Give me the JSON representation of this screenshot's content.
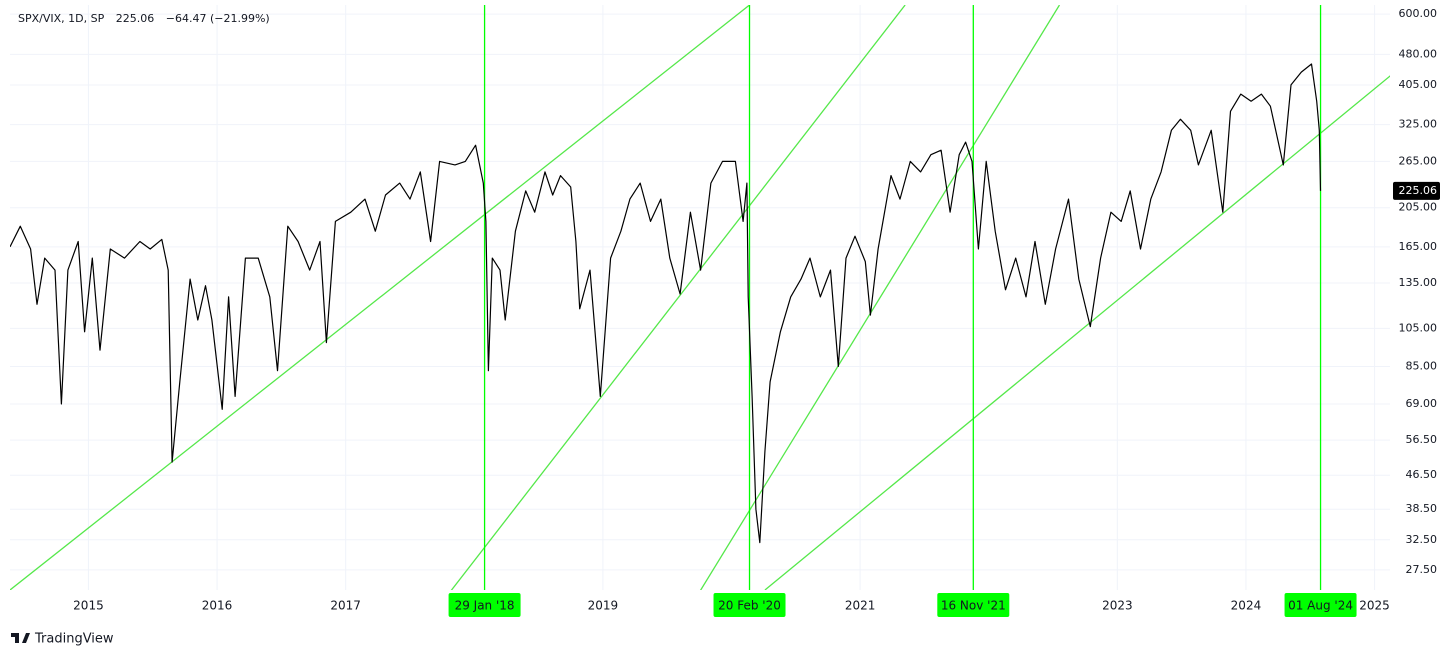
{
  "chart_data": {
    "type": "line",
    "title": "SPX/VIX, 1D, SP",
    "change": "−64.47 (−21.99%)",
    "brand": "TradingView",
    "scale": "log",
    "grid": true,
    "xlim": [
      2014.39,
      2025.12
    ],
    "xticks": [
      2015,
      2016,
      2017,
      2019,
      2021,
      2023,
      2024,
      2025
    ],
    "ylim": [
      24.6,
      631
    ],
    "yticks": [
      {
        "value": 27.5,
        "label": "27.50"
      },
      {
        "value": 32.5,
        "label": "32.50"
      },
      {
        "value": 38.5,
        "label": "38.50"
      },
      {
        "value": 46.5,
        "label": "46.50"
      },
      {
        "value": 56.5,
        "label": "56.50"
      },
      {
        "value": 69,
        "label": "69.00"
      },
      {
        "value": 85,
        "label": "85.00"
      },
      {
        "value": 105,
        "label": "105.00"
      },
      {
        "value": 135,
        "label": "135.00"
      },
      {
        "value": 165,
        "label": "165.00"
      },
      {
        "value": 205,
        "label": "205.00"
      },
      {
        "value": 265,
        "label": "265.00"
      },
      {
        "value": 325,
        "label": "325.00"
      },
      {
        "value": 405,
        "label": "405.00"
      },
      {
        "value": 480,
        "label": "480.00"
      },
      {
        "value": 600,
        "label": "600.00"
      }
    ],
    "series": [
      {
        "color": "#000000",
        "x": [
          2014.39,
          2014.47,
          2014.55,
          2014.6,
          2014.66,
          2014.74,
          2014.79,
          2014.84,
          2014.92,
          2014.97,
          2015.03,
          2015.09,
          2015.17,
          2015.28,
          2015.4,
          2015.48,
          2015.57,
          2015.62,
          2015.65,
          2015.71,
          2015.79,
          2015.85,
          2015.91,
          2015.96,
          2016.04,
          2016.09,
          2016.14,
          2016.22,
          2016.32,
          2016.41,
          2016.47,
          2016.55,
          2016.63,
          2016.72,
          2016.8,
          2016.85,
          2016.92,
          2017.04,
          2017.15,
          2017.23,
          2017.31,
          2017.42,
          2017.5,
          2017.58,
          2017.66,
          2017.73,
          2017.85,
          2017.93,
          2018.01,
          2018.07,
          2018.09,
          2018.11,
          2018.14,
          2018.2,
          2018.24,
          2018.32,
          2018.4,
          2018.47,
          2018.55,
          2018.61,
          2018.67,
          2018.75,
          2018.79,
          2018.82,
          2018.9,
          2018.98,
          2019.06,
          2019.14,
          2019.21,
          2019.29,
          2019.37,
          2019.45,
          2019.52,
          2019.6,
          2019.68,
          2019.76,
          2019.84,
          2019.93,
          2020.03,
          2020.09,
          2020.12,
          2020.13,
          2020.16,
          2020.19,
          2020.22,
          2020.26,
          2020.3,
          2020.38,
          2020.46,
          2020.54,
          2020.61,
          2020.69,
          2020.77,
          2020.83,
          2020.89,
          2020.96,
          2021.04,
          2021.08,
          2021.14,
          2021.24,
          2021.31,
          2021.39,
          2021.47,
          2021.55,
          2021.63,
          2021.7,
          2021.77,
          2021.82,
          2021.87,
          2021.92,
          2021.98,
          2022.05,
          2022.13,
          2022.21,
          2022.29,
          2022.36,
          2022.44,
          2022.52,
          2022.62,
          2022.7,
          2022.79,
          2022.87,
          2022.95,
          2023.03,
          2023.1,
          2023.18,
          2023.26,
          2023.34,
          2023.42,
          2023.49,
          2023.57,
          2023.63,
          2023.73,
          2023.82,
          2023.88,
          2023.96,
          2024.04,
          2024.12,
          2024.19,
          2024.29,
          2024.35,
          2024.43,
          2024.51,
          2024.55,
          2024.57,
          2024.58
        ],
        "values": [
          165,
          185,
          163,
          120,
          155,
          145,
          69,
          145,
          170,
          103,
          155,
          93,
          163,
          155,
          170,
          163,
          172,
          145,
          50,
          78,
          138,
          110,
          133,
          110,
          67,
          125,
          72,
          155,
          155,
          125,
          83,
          185,
          170,
          145,
          170,
          97,
          190,
          200,
          215,
          180,
          220,
          235,
          215,
          250,
          170,
          265,
          260,
          265,
          290,
          235,
          190,
          83,
          155,
          145,
          110,
          180,
          225,
          200,
          250,
          220,
          245,
          230,
          170,
          117,
          145,
          72,
          155,
          180,
          215,
          235,
          190,
          215,
          155,
          127,
          200,
          145,
          235,
          265,
          265,
          190,
          235,
          125,
          72,
          38.5,
          32,
          53,
          78,
          103,
          125,
          138,
          155,
          125,
          145,
          85,
          155,
          175,
          152,
          113,
          163,
          245,
          215,
          265,
          250,
          275,
          282,
          200,
          275,
          295,
          265,
          163,
          265,
          180,
          130,
          155,
          125,
          170,
          120,
          163,
          215,
          138,
          106,
          155,
          200,
          190,
          225,
          163,
          215,
          250,
          315,
          335,
          315,
          260,
          315,
          200,
          350,
          385,
          370,
          385,
          360,
          260,
          405,
          435,
          455,
          370,
          315,
          225.06
        ]
      }
    ],
    "x_markers": [
      {
        "value": 2018.08,
        "label": "29 Jan '18"
      },
      {
        "value": 2020.14,
        "label": "20 Feb '20"
      },
      {
        "value": 2021.88,
        "label": "16 Nov '21"
      },
      {
        "value": 2024.58,
        "label": "01 Aug '24"
      }
    ],
    "marker_color": "#00ff00",
    "trend_color": "#55e84a",
    "trend_lines": [
      {
        "x": [
          2014.39,
          2020.14
        ],
        "values": [
          24.6,
          631
        ]
      },
      {
        "x": [
          2017.81,
          2021.35
        ],
        "values": [
          24.3,
          631
        ]
      },
      {
        "x": [
          2019.75,
          2022.55
        ],
        "values": [
          24.3,
          631
        ]
      },
      {
        "x": [
          2020.26,
          2025.13
        ],
        "values": [
          24.6,
          428
        ]
      }
    ]
  }
}
